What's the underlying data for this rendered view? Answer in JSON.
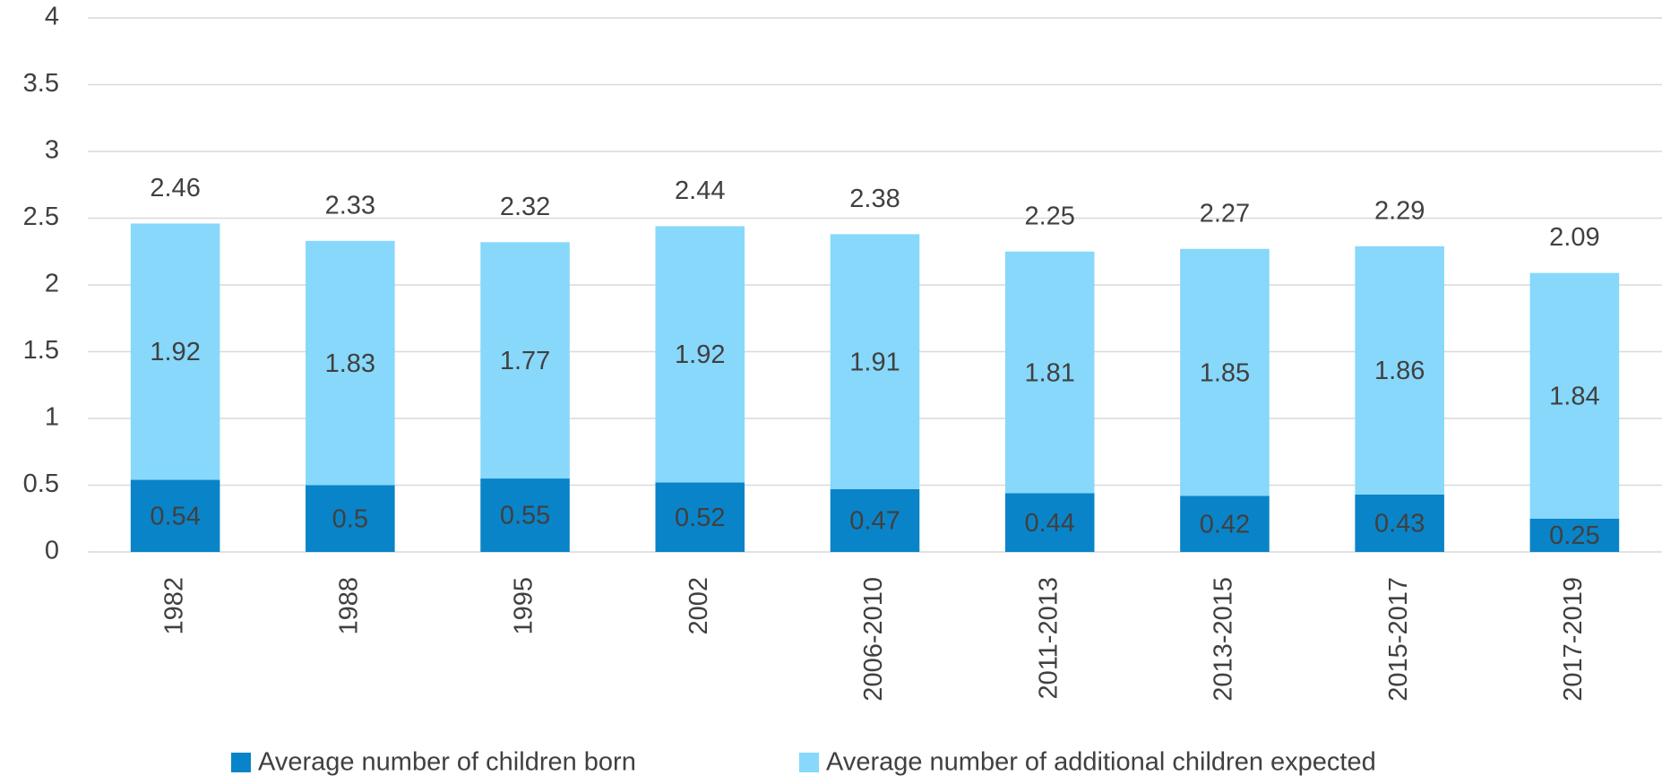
{
  "chart_data": {
    "type": "stacked_bar",
    "categories": [
      "1982",
      "1988",
      "1995",
      "2002",
      "2006-2010",
      "2011-2013",
      "2013-2015",
      "2015-2017",
      "2017-2019"
    ],
    "series": [
      {
        "name": "Average number of children born",
        "color": "#0a84c8",
        "values": [
          0.54,
          0.5,
          0.55,
          0.52,
          0.47,
          0.44,
          0.42,
          0.43,
          0.25
        ]
      },
      {
        "name": "Average number of additional children expected",
        "color": "#87d8fb",
        "values": [
          1.92,
          1.83,
          1.77,
          1.92,
          1.91,
          1.81,
          1.85,
          1.86,
          1.84
        ]
      }
    ],
    "totals": [
      2.46,
      2.33,
      2.32,
      2.44,
      2.38,
      2.25,
      2.27,
      2.29,
      2.09
    ],
    "ylim": [
      0,
      4
    ],
    "yticks": [
      0,
      0.5,
      1,
      1.5,
      2,
      2.5,
      3,
      3.5,
      4
    ],
    "grid": true,
    "legend": "bottom"
  }
}
